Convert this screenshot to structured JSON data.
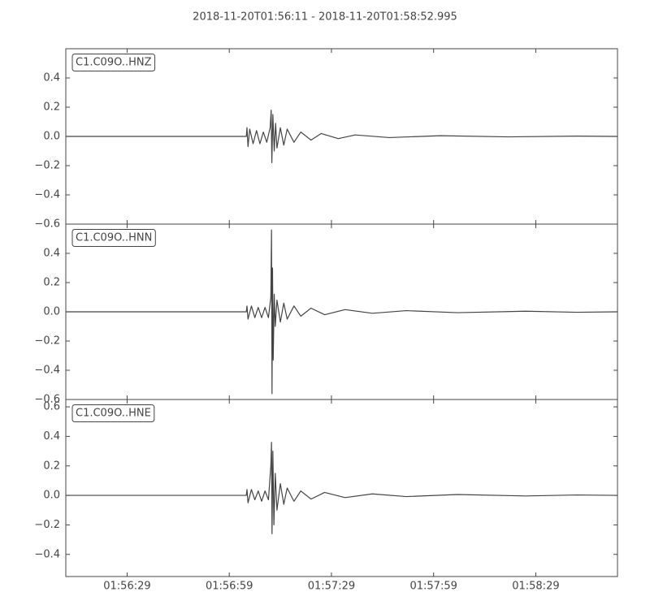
{
  "title": "2018-11-20T01:56:11  -  2018-11-20T01:58:52.995",
  "chart_data": [
    {
      "type": "line",
      "label": "C1.C09O..HNZ",
      "color": "#444444",
      "xlim": [
        0,
        161.995
      ],
      "ylim": [
        -0.6,
        0.6
      ],
      "yticks": [
        {
          "value": -0.6,
          "label": "−0.6"
        },
        {
          "value": -0.4,
          "label": "−0.4"
        },
        {
          "value": -0.2,
          "label": "−0.2"
        },
        {
          "value": 0,
          "label": "0.0"
        },
        {
          "value": 0.2,
          "label": "0.2"
        },
        {
          "value": 0.4,
          "label": "0.4"
        }
      ],
      "x": [
        0,
        53,
        53.2,
        53.5,
        54,
        55,
        56,
        57,
        58,
        59,
        60,
        60.3,
        60.5,
        60.8,
        61.2,
        61.6,
        62,
        63,
        64,
        65,
        67,
        69,
        72,
        75,
        80,
        85,
        95,
        110,
        130,
        150,
        161.995
      ],
      "values": [
        0,
        0,
        0.06,
        -0.07,
        0.05,
        -0.05,
        0.04,
        -0.05,
        0.03,
        -0.04,
        0.06,
        0.18,
        -0.18,
        0.15,
        -0.1,
        0.09,
        -0.08,
        0.06,
        -0.06,
        0.05,
        -0.04,
        0.03,
        -0.025,
        0.02,
        -0.015,
        0.01,
        -0.008,
        0.005,
        -0.003,
        0.002,
        0
      ]
    },
    {
      "type": "line",
      "label": "C1.C09O..HNN",
      "color": "#444444",
      "xlim": [
        0,
        161.995
      ],
      "ylim": [
        -0.6,
        0.6
      ],
      "yticks": [
        {
          "value": -0.6,
          "label": "−0.6"
        },
        {
          "value": -0.4,
          "label": "−0.4"
        },
        {
          "value": -0.2,
          "label": "−0.2"
        },
        {
          "value": 0,
          "label": "0.0"
        },
        {
          "value": 0.2,
          "label": "0.2"
        },
        {
          "value": 0.4,
          "label": "0.4"
        }
      ],
      "x": [
        0,
        53,
        53.2,
        53.5,
        54.5,
        55.5,
        56.5,
        57.5,
        58.5,
        59.5,
        60.2,
        60.4,
        60.55,
        60.7,
        60.9,
        61.2,
        61.5,
        62,
        63,
        64,
        65,
        67,
        69,
        72,
        76,
        82,
        90,
        100,
        115,
        135,
        150,
        161.995
      ],
      "values": [
        0,
        0,
        0.04,
        -0.05,
        0.04,
        -0.04,
        0.03,
        -0.04,
        0.03,
        -0.04,
        0.1,
        0.56,
        -0.56,
        0.3,
        -0.33,
        0.12,
        -0.1,
        0.08,
        -0.07,
        0.06,
        -0.05,
        0.04,
        -0.03,
        0.025,
        -0.02,
        0.015,
        -0.01,
        0.008,
        -0.006,
        0.004,
        -0.003,
        0
      ]
    },
    {
      "type": "line",
      "label": "C1.C09O..HNE",
      "color": "#444444",
      "xlim": [
        0,
        161.995
      ],
      "ylim": [
        -0.55,
        0.65
      ],
      "yticks": [
        {
          "value": -0.4,
          "label": "−0.4"
        },
        {
          "value": -0.2,
          "label": "−0.2"
        },
        {
          "value": 0,
          "label": "0.0"
        },
        {
          "value": 0.2,
          "label": "0.2"
        },
        {
          "value": 0.4,
          "label": "0.4"
        },
        {
          "value": 0.6,
          "label": "0.6"
        }
      ],
      "xticks": [
        {
          "value": 18,
          "label": "01:56:29"
        },
        {
          "value": 48,
          "label": "01:56:59"
        },
        {
          "value": 78,
          "label": "01:57:29"
        },
        {
          "value": 108,
          "label": "01:57:59"
        },
        {
          "value": 138,
          "label": "01:58:29"
        }
      ],
      "x": [
        0,
        53,
        53.2,
        53.5,
        54.5,
        55.5,
        56.5,
        57.5,
        58.5,
        59.5,
        60.2,
        60.4,
        60.55,
        60.8,
        61.1,
        61.5,
        62,
        63,
        64,
        65,
        67,
        69,
        72,
        76,
        82,
        90,
        100,
        115,
        135,
        150,
        161.995
      ],
      "values": [
        0,
        0,
        0.04,
        -0.05,
        0.04,
        -0.03,
        0.03,
        -0.04,
        0.03,
        -0.03,
        0.2,
        0.36,
        -0.26,
        0.3,
        -0.2,
        0.15,
        -0.1,
        0.08,
        -0.06,
        0.05,
        -0.04,
        0.03,
        -0.025,
        0.02,
        -0.015,
        0.01,
        -0.008,
        0.006,
        -0.004,
        0.003,
        0
      ]
    }
  ]
}
